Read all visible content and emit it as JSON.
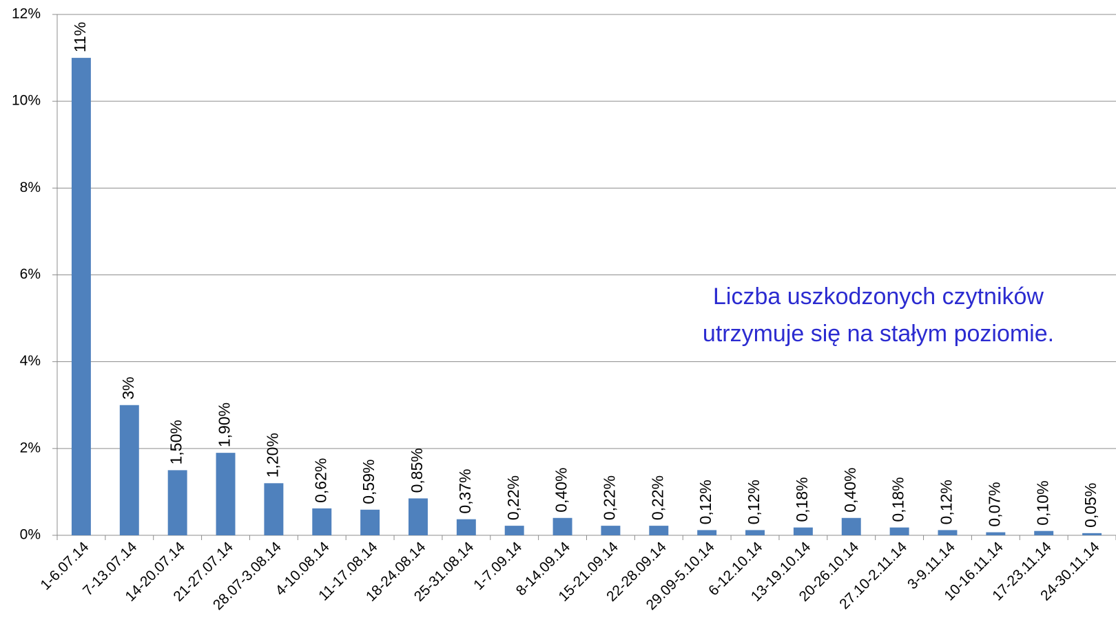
{
  "chart_data": {
    "type": "bar",
    "categories": [
      "1-6.07.14",
      "7-13.07.14",
      "14-20.07.14",
      "21-27.07.14",
      "28.07-3.08.14",
      "4-10.08.14",
      "11-17.08.14",
      "18-24.08.14",
      "25-31.08.14",
      "1-7.09.14",
      "8-14.09.14",
      "15-21.09.14",
      "22-28.09.14",
      "29.09-5.10.14",
      "6-12.10.14",
      "13-19.10.14",
      "20-26.10.14",
      "27.10-2.11.14",
      "3-9.11.14",
      "10-16.11.14",
      "17-23.11.14",
      "24-30.11.14"
    ],
    "values": [
      11,
      3,
      1.5,
      1.9,
      1.2,
      0.62,
      0.59,
      0.85,
      0.37,
      0.22,
      0.4,
      0.22,
      0.22,
      0.12,
      0.12,
      0.18,
      0.4,
      0.18,
      0.12,
      0.07,
      0.1,
      0.05
    ],
    "value_labels": [
      "11%",
      "3%",
      "1,50%",
      "1,90%",
      "1,20%",
      "0,62%",
      "0,59%",
      "0,85%",
      "0,37%",
      "0,22%",
      "0,40%",
      "0,22%",
      "0,22%",
      "0,12%",
      "0,12%",
      "0,18%",
      "0,40%",
      "0,18%",
      "0,12%",
      "0,07%",
      "0,10%",
      "0,05%"
    ],
    "color": "#4f81bd",
    "ylim": [
      0,
      12
    ],
    "yticks": [
      {
        "value": 0,
        "label": "0%"
      },
      {
        "value": 2,
        "label": "2%"
      },
      {
        "value": 4,
        "label": "4%"
      },
      {
        "value": 6,
        "label": "6%"
      },
      {
        "value": 8,
        "label": "8%"
      },
      {
        "value": 10,
        "label": "10%"
      },
      {
        "value": 12,
        "label": "12%"
      }
    ],
    "grid": true,
    "annotation": [
      "Liczba uszkodzonych czytników",
      "utrzymuje się na stałym poziomie."
    ]
  }
}
